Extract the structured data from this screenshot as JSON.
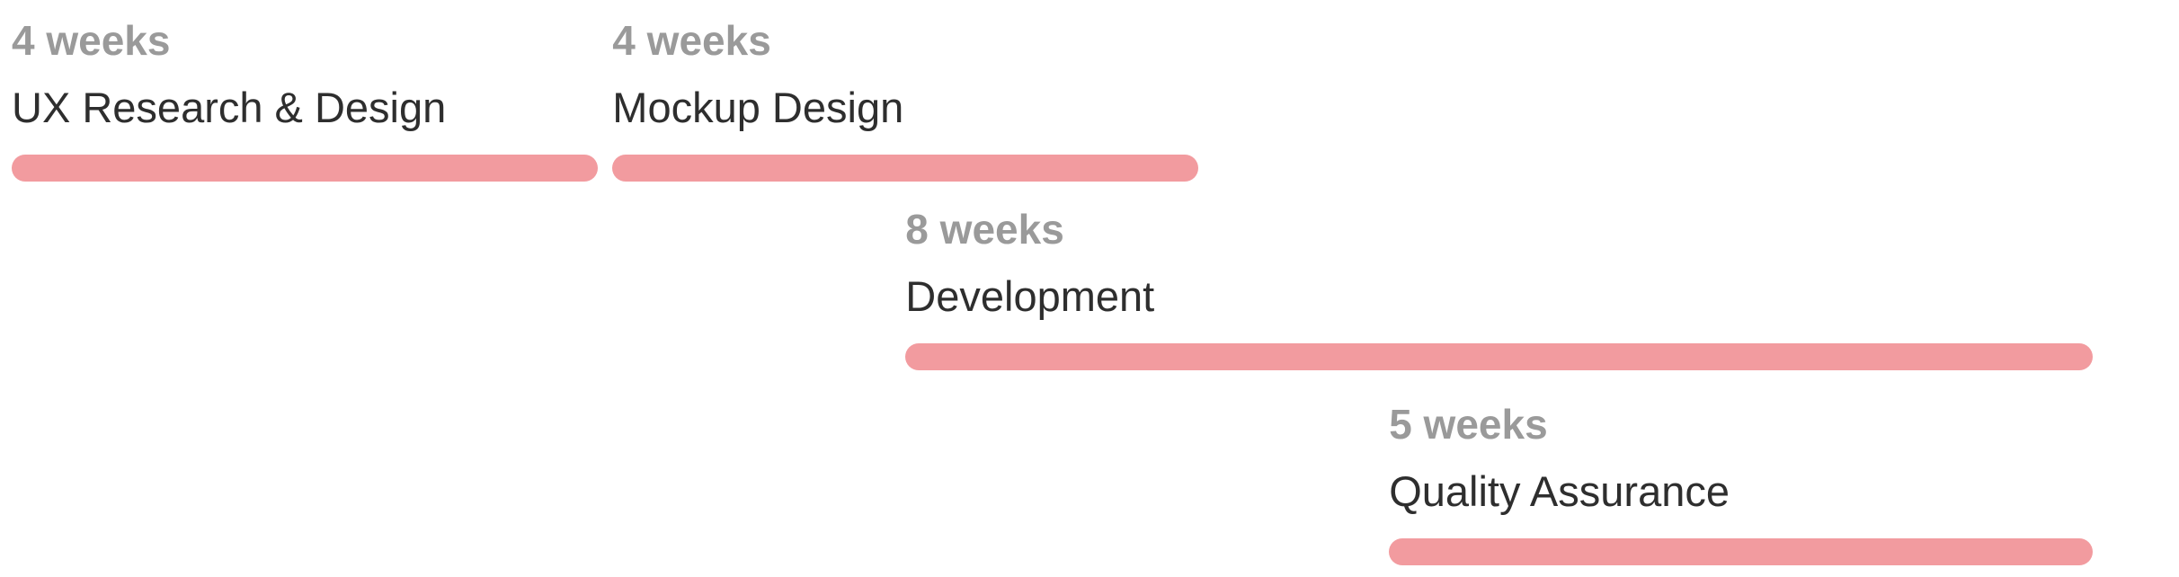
{
  "chart_data": {
    "type": "bar",
    "title": "",
    "xlabel": "",
    "ylabel": "",
    "bar_color": "#f29b9f",
    "duration_color": "#9a9a9a",
    "name_color": "#2e2e2e",
    "x_range": [
      0,
      16
    ],
    "tasks": [
      {
        "name": "UX Research & Design",
        "duration_label": "4 weeks",
        "start": 0,
        "end": 4
      },
      {
        "name": "Mockup Design",
        "duration_label": "4 weeks",
        "start": 4.1,
        "end": 8.1
      },
      {
        "name": "Development",
        "duration_label": "8 weeks",
        "start": 6.1,
        "end": 14.2
      },
      {
        "name": "Quality Assurance",
        "duration_label": "5 weeks",
        "start": 9.4,
        "end": 14.2
      }
    ]
  }
}
